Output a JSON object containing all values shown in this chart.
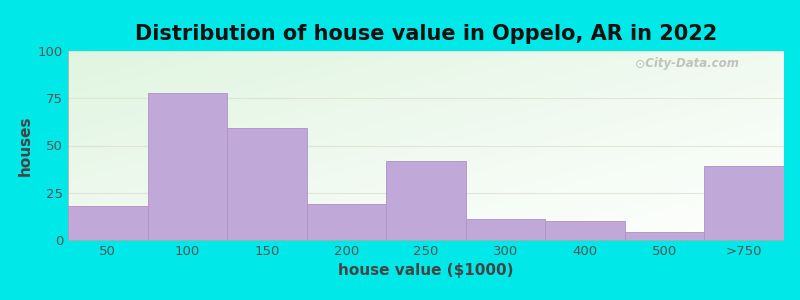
{
  "categories": [
    "50",
    "100",
    "150",
    "200",
    "250",
    "300",
    "400",
    "500",
    ">750"
  ],
  "values": [
    18,
    78,
    59,
    19,
    42,
    11,
    10,
    4,
    39
  ],
  "bar_color": "#c0a8d8",
  "bar_edgecolor": "#b090c8",
  "title": "Distribution of house value in Oppelo, AR in 2022",
  "xlabel": "house value ($1000)",
  "ylabel": "houses",
  "ylim": [
    0,
    100
  ],
  "yticks": [
    0,
    25,
    50,
    75,
    100
  ],
  "outer_bg": "#00e8e8",
  "watermark": "City-Data.com",
  "title_fontsize": 15,
  "axis_label_fontsize": 11,
  "tick_fontsize": 9.5
}
